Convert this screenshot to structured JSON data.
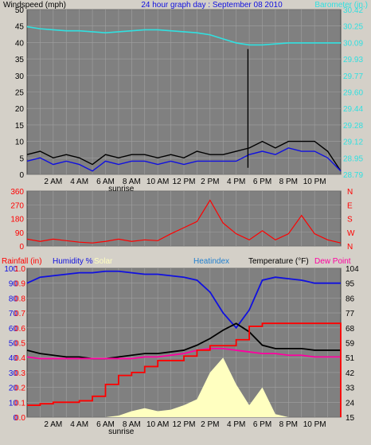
{
  "title": "24 hour graph day : September 08 2010",
  "time_ticks": [
    "2 AM",
    "4 AM",
    "6 AM",
    "8 AM",
    "10 AM",
    "12 PM",
    "2 PM",
    "4 PM",
    "6 PM",
    "8 PM",
    "10 PM"
  ],
  "sunrise_label": "sunrise",
  "colors": {
    "frame": "#d4d0c8",
    "plot_bg": "#808080",
    "grid": "#a0a0a0",
    "wind_black": "#000000",
    "wind_blue": "#1010e0",
    "baro": "#30e0e0",
    "dir": "#ff0000",
    "rain": "#ff0000",
    "humidity": "#1010e0",
    "solar": "#ffffc0",
    "temp": "#000000",
    "dew": "#ff00a0"
  },
  "chart_data": [
    {
      "type": "line",
      "title": "24 hour graph day : September 08 2010",
      "xlabel": "",
      "x_hours": [
        0,
        1,
        2,
        3,
        4,
        5,
        6,
        7,
        8,
        9,
        10,
        11,
        12,
        13,
        14,
        15,
        16,
        17,
        18,
        19,
        20,
        21,
        22,
        23,
        24
      ],
      "left_axis": {
        "label": "Windspeed (mph)",
        "range": [
          0,
          50
        ],
        "ticks": [
          0,
          5,
          10,
          15,
          20,
          25,
          30,
          35,
          40,
          45,
          50
        ]
      },
      "right_axis": {
        "label": "Barometer (in.)",
        "range": [
          28.79,
          30.42
        ],
        "ticks": [
          "28.79",
          "28.95",
          "29.12",
          "29.28",
          "29.44",
          "29.60",
          "29.77",
          "29.93",
          "30.09",
          "30.25",
          "30.42"
        ]
      },
      "series": [
        {
          "name": "Wind gust",
          "axis": "left",
          "color": "#000000",
          "values": [
            6,
            7,
            5,
            6,
            5,
            3,
            6,
            5,
            6,
            6,
            5,
            6,
            5,
            7,
            6,
            6,
            7,
            8,
            10,
            8,
            10,
            10,
            10,
            7,
            1
          ]
        },
        {
          "name": "Wind speed",
          "axis": "left",
          "color": "#1010e0",
          "values": [
            4,
            5,
            3,
            4,
            3,
            1,
            4,
            3,
            4,
            4,
            3,
            4,
            3,
            4,
            4,
            4,
            4,
            6,
            7,
            6,
            8,
            7,
            7,
            5,
            1
          ]
        },
        {
          "name": "Barometer",
          "axis": "right",
          "color": "#30e0e0",
          "values": [
            30.25,
            30.23,
            30.22,
            30.21,
            30.21,
            30.2,
            30.19,
            30.2,
            30.21,
            30.22,
            30.22,
            30.21,
            30.2,
            30.19,
            30.17,
            30.13,
            30.09,
            30.07,
            30.07,
            30.08,
            30.09,
            30.09,
            30.09,
            30.09,
            30.09
          ]
        }
      ],
      "spike": {
        "hour": 16.9,
        "value": 38
      }
    },
    {
      "type": "line",
      "left_axis": {
        "range": [
          0,
          360
        ],
        "ticks": [
          0,
          90,
          180,
          270,
          360
        ]
      },
      "right_axis": {
        "ticks": [
          "N",
          "E",
          "S",
          "W",
          "N"
        ]
      },
      "series": [
        {
          "name": "Wind direction",
          "color": "#ff0000",
          "values": [
            45,
            30,
            45,
            35,
            25,
            20,
            30,
            45,
            30,
            40,
            35,
            80,
            120,
            160,
            300,
            150,
            80,
            40,
            100,
            40,
            80,
            200,
            80,
            40,
            20
          ]
        }
      ]
    },
    {
      "type": "line",
      "left_axis": {
        "labels": [
          "Rainfall (in)",
          "Humidity %"
        ],
        "humidity_ticks": [
          0,
          10,
          20,
          30,
          40,
          50,
          60,
          70,
          80,
          90,
          100
        ],
        "rain_ticks": [
          "0.0",
          "0.1",
          "0.2",
          "0.3",
          "0.4",
          "0.5",
          "0.6",
          "0.7",
          "0.8",
          "0.9",
          "1.0"
        ]
      },
      "right_axis": {
        "label": "Temperature (°F)",
        "range": [
          15,
          104
        ],
        "ticks": [
          15,
          24,
          33,
          42,
          51,
          59,
          68,
          77,
          86,
          95,
          104
        ]
      },
      "extra_labels": [
        "Solar",
        "Heatindex",
        "Dew Point"
      ],
      "series": [
        {
          "name": "Humidity",
          "axis": "humidity",
          "color": "#1010e0",
          "values": [
            90,
            94,
            95,
            96,
            97,
            97,
            98,
            98,
            97,
            96,
            96,
            95,
            94,
            92,
            84,
            70,
            60,
            72,
            92,
            94,
            93,
            92,
            90,
            90,
            90
          ]
        },
        {
          "name": "Temperature",
          "axis": "temp",
          "color": "#000000",
          "values": [
            55,
            53,
            52,
            51,
            51,
            50,
            50,
            51,
            52,
            53,
            53,
            54,
            55,
            58,
            62,
            67,
            71,
            66,
            58,
            56,
            56,
            56,
            55,
            55,
            55
          ]
        },
        {
          "name": "Dew point",
          "axis": "temp",
          "color": "#ff00a0",
          "values": [
            51,
            50,
            50,
            50,
            50,
            50,
            50,
            50,
            50,
            51,
            51,
            52,
            53,
            55,
            56,
            56,
            55,
            54,
            53,
            53,
            52,
            52,
            51,
            51,
            51
          ]
        },
        {
          "name": "Rainfall",
          "axis": "rain",
          "color": "#ff0000",
          "values": [
            0.08,
            0.09,
            0.1,
            0.1,
            0.11,
            0.14,
            0.22,
            0.28,
            0.3,
            0.34,
            0.38,
            0.38,
            0.41,
            0.45,
            0.48,
            0.48,
            0.52,
            0.61,
            0.63,
            0.63,
            0.63,
            0.63,
            0.63,
            0.63,
            0.63
          ]
        },
        {
          "name": "Solar",
          "axis": "solar",
          "color": "#ffffc0",
          "values": [
            0,
            0,
            0,
            0,
            0,
            0,
            0,
            1,
            4,
            6,
            4,
            5,
            8,
            12,
            30,
            40,
            22,
            8,
            20,
            2,
            0,
            0,
            0,
            0,
            0
          ]
        }
      ]
    }
  ]
}
